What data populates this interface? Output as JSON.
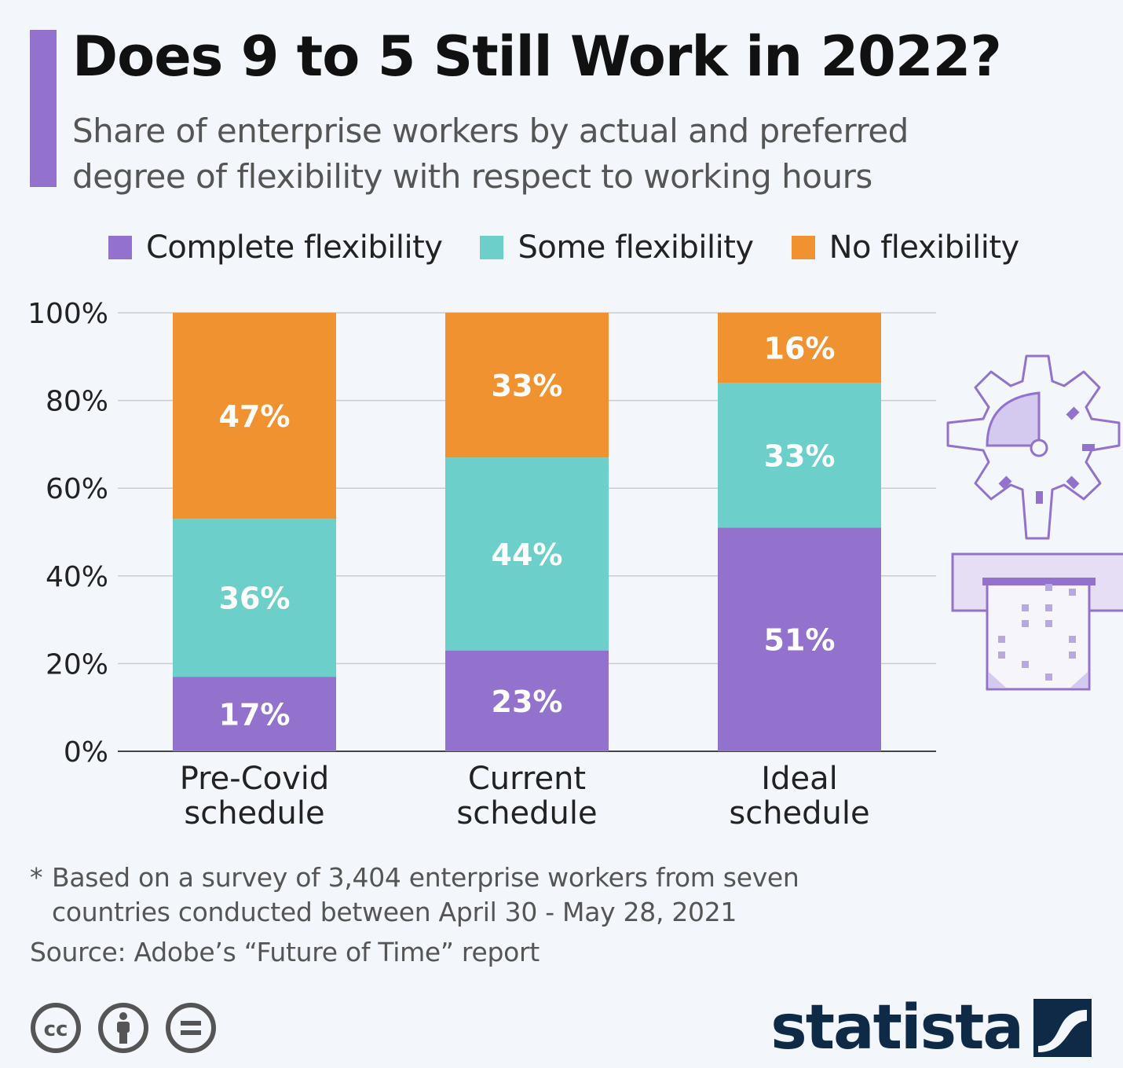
{
  "header": {
    "title": "Does 9 to 5 Still Work in 2022?",
    "subtitle": "Share of enterprise workers by actual and preferred degree of flexibility with respect to working hours"
  },
  "colors": {
    "accent": "#9272cc",
    "complete": "#9272cc",
    "some": "#6ccfc9",
    "none": "#f0922f",
    "brand": "#0e2a47"
  },
  "chart_data": {
    "type": "bar",
    "stacked": true,
    "categories": [
      "Pre-Covid schedule",
      "Current schedule",
      "Ideal schedule"
    ],
    "category_lines": [
      [
        "Pre-Covid",
        "schedule"
      ],
      [
        "Current",
        "schedule"
      ],
      [
        "Ideal",
        "schedule"
      ]
    ],
    "series": [
      {
        "name": "Complete flexibility",
        "values": [
          17,
          23,
          51
        ],
        "labels": [
          "17%",
          "23%",
          "51%"
        ],
        "color": "#9272cc"
      },
      {
        "name": "Some flexibility",
        "values": [
          36,
          44,
          33
        ],
        "labels": [
          "36%",
          "44%",
          "33%"
        ],
        "color": "#6ccfc9"
      },
      {
        "name": "No flexibility",
        "values": [
          47,
          33,
          16
        ],
        "labels": [
          "47%",
          "33%",
          "16%"
        ],
        "color": "#f0922f"
      }
    ],
    "y_ticks": [
      0,
      20,
      40,
      60,
      80,
      100
    ],
    "y_tick_labels": [
      "0%",
      "20%",
      "40%",
      "60%",
      "80%",
      "100%"
    ],
    "ylim": [
      0,
      100
    ],
    "grid": true,
    "legend": "top"
  },
  "footer": {
    "note_star": "*",
    "note_line1": "Based on a survey of 3,404 enterprise workers from seven",
    "note_line2": "countries conducted between April 30 - May 28, 2021",
    "source": "Source: Adobe’s “Future of Time” report",
    "brand": "statista"
  },
  "icons": [
    "cc-icon",
    "by-icon",
    "nd-icon",
    "statista-logo-icon",
    "gear-clock-icon"
  ]
}
